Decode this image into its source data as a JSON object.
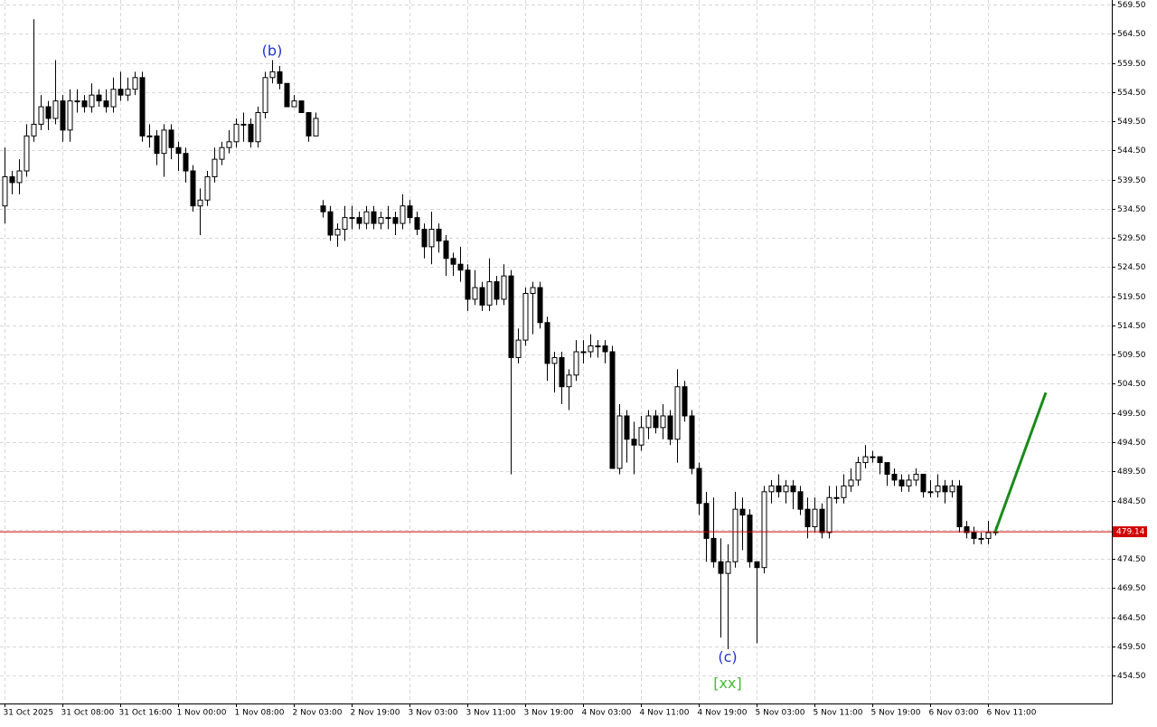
{
  "chart_data": {
    "type": "candlestick",
    "open": [
      535,
      540,
      539,
      541,
      547,
      549,
      552,
      550,
      553,
      548,
      553,
      553,
      552,
      554,
      553,
      552,
      555,
      554,
      555,
      557,
      547,
      547,
      544,
      548,
      545,
      544,
      541,
      535,
      536,
      540,
      543,
      545,
      546,
      549,
      549,
      546,
      551,
      557,
      558,
      556,
      552,
      553,
      551,
      547,
      535,
      534,
      530,
      531,
      533,
      533,
      532,
      534,
      532,
      533,
      533,
      532,
      535,
      533,
      531,
      528,
      531,
      529,
      526,
      525,
      524,
      519,
      521,
      518,
      522,
      519,
      523,
      509,
      512,
      520,
      521,
      515,
      508,
      509,
      504,
      506,
      510,
      510,
      511,
      511,
      510,
      490,
      499,
      495,
      494,
      497,
      499,
      497,
      499,
      495,
      504,
      499,
      490,
      484,
      478,
      474,
      472,
      474,
      483,
      482,
      474,
      473,
      486,
      487,
      486,
      487,
      486,
      483,
      480,
      483,
      479,
      485,
      485,
      487,
      488,
      491,
      492,
      492,
      491,
      489,
      488,
      487,
      488,
      489,
      486,
      486,
      487,
      486,
      487,
      480,
      479,
      478,
      478,
      479
    ],
    "high": [
      545,
      541,
      543,
      549,
      567,
      554,
      553,
      560,
      554,
      555,
      555,
      554,
      556,
      555,
      555,
      557,
      558,
      557,
      558,
      558,
      549,
      548,
      549,
      549,
      546,
      545,
      542,
      538,
      541,
      545,
      546,
      548,
      550,
      551,
      550,
      552,
      558,
      560,
      559,
      556,
      554,
      553,
      551,
      551,
      536,
      535,
      532,
      535,
      535,
      534,
      535,
      535,
      534,
      535,
      534,
      537,
      536,
      534,
      532,
      534,
      532,
      530,
      527,
      528,
      525,
      524,
      522,
      526,
      523,
      525,
      524,
      514,
      521,
      522,
      522,
      516,
      510,
      510,
      507,
      512,
      512,
      513,
      512,
      512,
      511,
      501,
      500,
      498,
      499,
      500,
      500,
      501,
      500,
      507,
      505,
      500,
      491,
      486,
      485,
      478,
      477,
      486,
      485,
      483,
      474,
      487,
      488,
      489,
      488,
      488,
      487,
      485,
      485,
      484,
      487,
      487,
      489,
      490,
      492,
      494,
      493,
      492,
      491,
      490,
      489,
      489,
      490,
      489,
      488,
      489,
      488,
      488,
      488,
      481,
      480,
      479,
      481,
      480
    ],
    "low": [
      532,
      537,
      537,
      540,
      546,
      548,
      548,
      549,
      546,
      546,
      551,
      551,
      551,
      552,
      551,
      551,
      553,
      553,
      554,
      546,
      545,
      542,
      540,
      543,
      541,
      539,
      534,
      530,
      535,
      539,
      542,
      544,
      545,
      546,
      545,
      545,
      550,
      556,
      555,
      552,
      552,
      551,
      546,
      547,
      533,
      529,
      528,
      529,
      531,
      531,
      531,
      531,
      531,
      531,
      530,
      531,
      532,
      530,
      526,
      525,
      527,
      523,
      523,
      522,
      517,
      518,
      517,
      517,
      518,
      518,
      489,
      508,
      511,
      513,
      514,
      505,
      503,
      501,
      500,
      505,
      508,
      509,
      509,
      508,
      490,
      489,
      491,
      489,
      493,
      495,
      496,
      495,
      494,
      491,
      498,
      489,
      482,
      474,
      473,
      461,
      459,
      473,
      476,
      473,
      460,
      472,
      484,
      485,
      484,
      483,
      482,
      478,
      479,
      478,
      478,
      484,
      484,
      486,
      487,
      490,
      491,
      489,
      487,
      487,
      486,
      486,
      487,
      485,
      485,
      485,
      484,
      485,
      479,
      478,
      477,
      477,
      477,
      478.5
    ],
    "close": [
      540,
      539,
      541,
      547,
      549,
      552,
      550,
      553,
      548,
      553,
      553,
      552,
      554,
      553,
      552,
      555,
      554,
      555,
      557,
      547,
      547,
      544,
      548,
      545,
      544,
      541,
      535,
      536,
      540,
      543,
      545,
      546,
      549,
      549,
      546,
      551,
      557,
      558,
      556,
      552,
      553,
      551,
      547,
      550,
      534,
      530,
      531,
      533,
      533,
      532,
      534,
      532,
      533,
      533,
      532,
      535,
      533,
      531,
      528,
      531,
      529,
      526,
      525,
      524,
      519,
      521,
      518,
      522,
      519,
      523,
      509,
      512,
      520,
      521,
      515,
      508,
      509,
      504,
      506,
      510,
      510,
      511,
      511,
      510,
      490,
      499,
      495,
      494,
      497,
      499,
      497,
      499,
      495,
      504,
      499,
      490,
      484,
      478,
      474,
      472,
      474,
      483,
      482,
      474,
      473,
      486,
      487,
      486,
      487,
      486,
      483,
      480,
      483,
      479,
      485,
      485,
      487,
      488,
      491,
      492,
      492,
      491,
      489,
      488,
      487,
      488,
      489,
      486,
      486,
      487,
      486,
      487,
      480,
      479,
      478,
      478,
      479,
      479.14
    ],
    "bull_color": "#ffffff",
    "bear_color": "#000000",
    "last_price": 479.14,
    "last_price_color": "#d00000",
    "projection": {
      "x": [
        137,
        144
      ],
      "values": [
        479.14,
        503
      ],
      "color": "#1a8a1a"
    },
    "annotations": [
      {
        "text": "(b)",
        "x": 37,
        "y": 561.5,
        "color": "#2233cc"
      },
      {
        "text": "(c)",
        "x": 100,
        "y": 457.5,
        "color": "#2233cc"
      },
      {
        "text": "[xx]",
        "x": 100,
        "y": 453.0,
        "color": "#44bb33"
      }
    ],
    "xlim": [
      -0.625,
      153.125
    ],
    "ylim": [
      449.7,
      570.3
    ],
    "grid": true,
    "xticks": [
      {
        "value": 0,
        "label": "31 Oct 2025"
      },
      {
        "value": 8,
        "label": "31 Oct 08:00"
      },
      {
        "value": 16,
        "label": "31 Oct 16:00"
      },
      {
        "value": 24,
        "label": "1 Nov 00:00"
      },
      {
        "value": 32,
        "label": "1 Nov 08:00"
      },
      {
        "value": 40,
        "label": "2 Nov 03:00"
      },
      {
        "value": 48,
        "label": "2 Nov 19:00"
      },
      {
        "value": 56,
        "label": "3 Nov 03:00"
      },
      {
        "value": 64,
        "label": "3 Nov 11:00"
      },
      {
        "value": 72,
        "label": "3 Nov 19:00"
      },
      {
        "value": 80,
        "label": "4 Nov 03:00"
      },
      {
        "value": 88,
        "label": "4 Nov 11:00"
      },
      {
        "value": 96,
        "label": "4 Nov 19:00"
      },
      {
        "value": 104,
        "label": "5 Nov 03:00"
      },
      {
        "value": 112,
        "label": "5 Nov 11:00"
      },
      {
        "value": 120,
        "label": "5 Nov 19:00"
      },
      {
        "value": 128,
        "label": "6 Nov 03:00"
      },
      {
        "value": 136,
        "label": "6 Nov 11:00"
      }
    ],
    "yticks": [
      {
        "value": 569.5,
        "label": "569.50"
      },
      {
        "value": 564.5,
        "label": "564.50"
      },
      {
        "value": 559.5,
        "label": "559.50"
      },
      {
        "value": 554.5,
        "label": "554.50"
      },
      {
        "value": 549.5,
        "label": "549.50"
      },
      {
        "value": 544.5,
        "label": "544.50"
      },
      {
        "value": 539.5,
        "label": "539.50"
      },
      {
        "value": 534.5,
        "label": "534.50"
      },
      {
        "value": 529.5,
        "label": "529.50"
      },
      {
        "value": 524.5,
        "label": "524.50"
      },
      {
        "value": 519.5,
        "label": "519.50"
      },
      {
        "value": 514.5,
        "label": "514.50"
      },
      {
        "value": 509.5,
        "label": "509.50"
      },
      {
        "value": 504.5,
        "label": "504.50"
      },
      {
        "value": 499.5,
        "label": "499.50"
      },
      {
        "value": 494.5,
        "label": "494.50"
      },
      {
        "value": 489.5,
        "label": "489.50"
      },
      {
        "value": 484.5,
        "label": "484.50"
      },
      {
        "value": 479.5,
        "label": "479.50"
      },
      {
        "value": 474.5,
        "label": "474.50"
      },
      {
        "value": 469.5,
        "label": "469.50"
      },
      {
        "value": 464.5,
        "label": "464.50"
      },
      {
        "value": 459.5,
        "label": "459.50"
      },
      {
        "value": 454.5,
        "label": "454.50"
      }
    ]
  }
}
